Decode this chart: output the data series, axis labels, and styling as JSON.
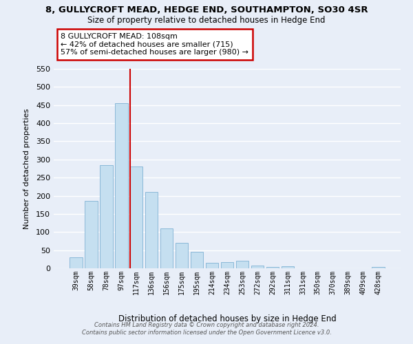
{
  "title": "8, GULLYCROFT MEAD, HEDGE END, SOUTHAMPTON, SO30 4SR",
  "subtitle": "Size of property relative to detached houses in Hedge End",
  "xlabel": "Distribution of detached houses by size in Hedge End",
  "ylabel": "Number of detached properties",
  "bar_labels": [
    "39sqm",
    "58sqm",
    "78sqm",
    "97sqm",
    "117sqm",
    "136sqm",
    "156sqm",
    "175sqm",
    "195sqm",
    "214sqm",
    "234sqm",
    "253sqm",
    "272sqm",
    "292sqm",
    "311sqm",
    "331sqm",
    "350sqm",
    "370sqm",
    "389sqm",
    "409sqm",
    "428sqm"
  ],
  "bar_values": [
    30,
    185,
    285,
    455,
    280,
    210,
    110,
    70,
    45,
    15,
    18,
    20,
    8,
    4,
    5,
    0,
    0,
    0,
    0,
    0,
    3
  ],
  "bar_color": "#c5dff0",
  "bar_edge_color": "#8ab8d8",
  "vline_index": 4,
  "vline_color": "#cc0000",
  "ylim": [
    0,
    550
  ],
  "yticks": [
    0,
    50,
    100,
    150,
    200,
    250,
    300,
    350,
    400,
    450,
    500,
    550
  ],
  "annotation_title": "8 GULLYCROFT MEAD: 108sqm",
  "annotation_line1": "← 42% of detached houses are smaller (715)",
  "annotation_line2": "57% of semi-detached houses are larger (980) →",
  "annotation_box_color": "#ffffff",
  "annotation_box_edge": "#cc0000",
  "footer_line1": "Contains HM Land Registry data © Crown copyright and database right 2024.",
  "footer_line2": "Contains public sector information licensed under the Open Government Licence v3.0.",
  "background_color": "#e8eef8",
  "grid_color": "#ffffff"
}
